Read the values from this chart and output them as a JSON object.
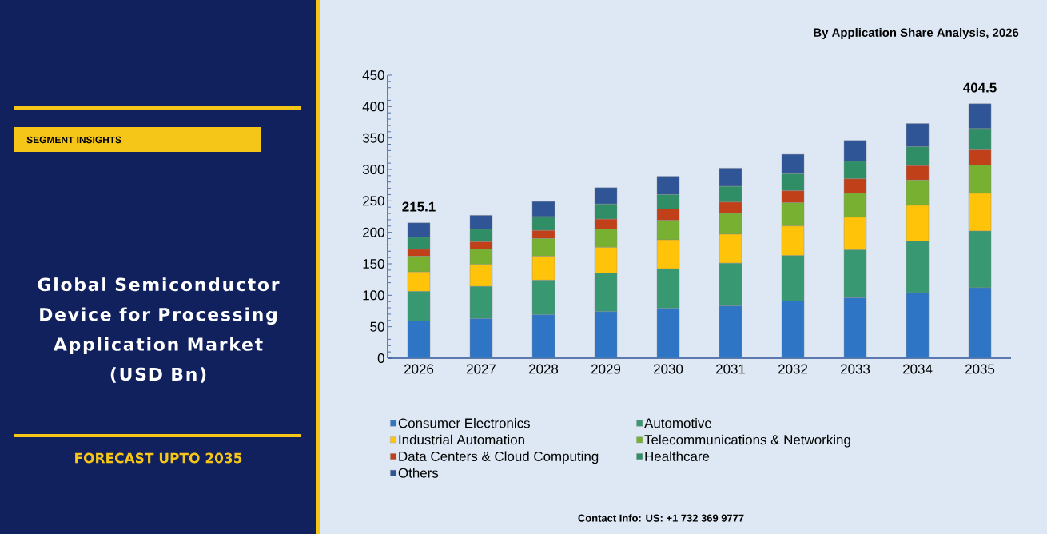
{
  "chart_data": {
    "type": "bar",
    "stacked": true,
    "title": "Global Semiconductor Device for Processing Application Market (USD Bn)",
    "subtitle": "By Application Share Analysis, 2026",
    "annotations": [
      "SEGMENT INSIGHTS",
      "FORECAST UPTO 2035",
      "Contact Info: US: +1 732 369 9777"
    ],
    "categories": [
      "2026",
      "2027",
      "2028",
      "2029",
      "2030",
      "2031",
      "2032",
      "2033",
      "2034",
      "2035"
    ],
    "series": [
      {
        "name": "Consumer Electronics",
        "color": "#2e75c5",
        "values": [
          59,
          63,
          69,
          74,
          79,
          83,
          91,
          96,
          104,
          112
        ]
      },
      {
        "name": "Automotive",
        "color": "#379872",
        "values": [
          47,
          51,
          55,
          61,
          63,
          68,
          72,
          76,
          82,
          90
        ]
      },
      {
        "name": "Industrial Automation",
        "color": "#ffc30a",
        "values": [
          31,
          35,
          38,
          41,
          46,
          46,
          47,
          52,
          57,
          60
        ]
      },
      {
        "name": "Telecommunications & Networking",
        "color": "#78b031",
        "values": [
          25,
          24,
          28,
          29,
          31,
          33,
          37,
          38,
          40,
          45
        ]
      },
      {
        "name": "Data Centers & Cloud Computing",
        "color": "#c0401a",
        "values": [
          11,
          12,
          13,
          16,
          18,
          18,
          19,
          23,
          23,
          24
        ]
      },
      {
        "name": "Healthcare",
        "color": "#2f8e66",
        "values": [
          19,
          20,
          22,
          24,
          23,
          25,
          27,
          28,
          30,
          34
        ]
      },
      {
        "name": "Others",
        "color": "#2f5597",
        "values": [
          23.1,
          22,
          24,
          26,
          29,
          29,
          31,
          33,
          37,
          39.5
        ]
      }
    ],
    "totals": [
      "215.1",
      null,
      null,
      null,
      null,
      null,
      null,
      null,
      null,
      "404.5"
    ],
    "ylim": [
      0,
      450
    ],
    "yticks": [
      0,
      50,
      100,
      150,
      200,
      250,
      300,
      350,
      400,
      450
    ],
    "legend": "bottom"
  }
}
